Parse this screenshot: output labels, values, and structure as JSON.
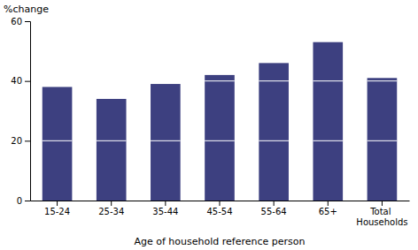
{
  "chart_data": {
    "type": "bar",
    "categories": [
      "15-24",
      "25-34",
      "35-44",
      "45-54",
      "55-64",
      "65+",
      "Total\nHouseholds"
    ],
    "values": [
      38.0,
      34.0,
      39.0,
      42.0,
      46.0,
      53.0,
      41.0
    ],
    "color": "#3d4080",
    "ylim": [
      0,
      60
    ],
    "yticks": [
      0,
      20,
      40,
      60
    ],
    "xlabel": "Age of household reference person",
    "ylabel": "%change",
    "grid": true
  }
}
